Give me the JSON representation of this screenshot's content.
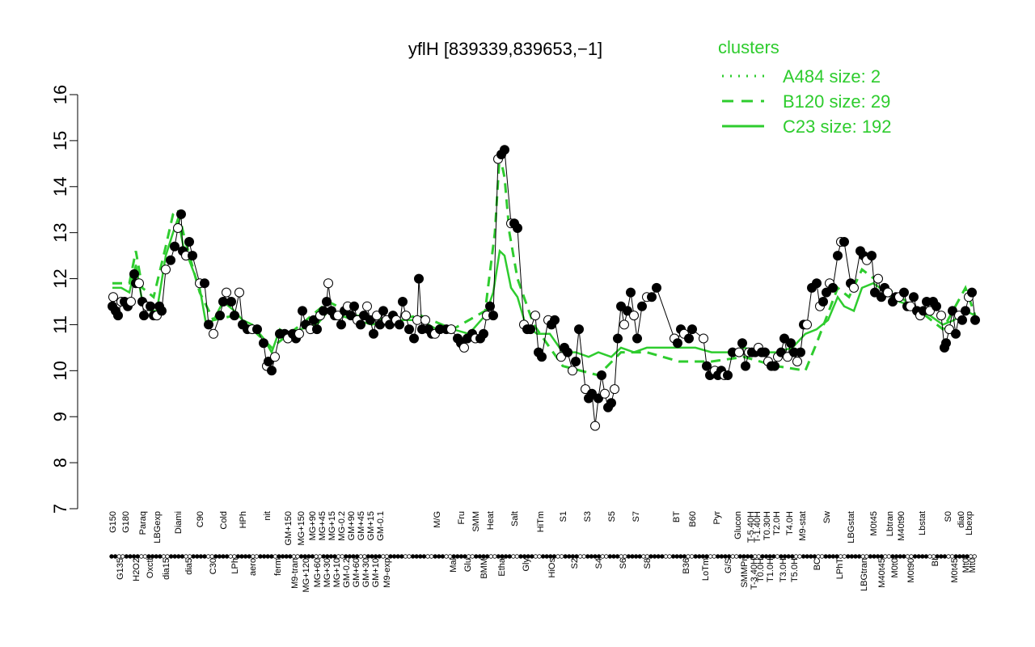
{
  "chart_data": {
    "type": "line",
    "title": "yflH [839339,839653,−1]",
    "ylim": [
      7,
      16
    ],
    "yticks": [
      7,
      8,
      9,
      10,
      11,
      12,
      13,
      14,
      15,
      16
    ],
    "xlabel": "",
    "ylabel": "",
    "grid": false,
    "legend": {
      "title": "clusters",
      "placement": "top-right",
      "entries": [
        {
          "label": "A484 size: 2",
          "style": "dotted"
        },
        {
          "label": "B120 size: 29",
          "style": "dashed"
        },
        {
          "label": "C23 size: 192",
          "style": "solid"
        }
      ]
    },
    "line_color": "#2ecc2e",
    "tick_labels": [
      "G150",
      "G135",
      "G180",
      "H2O2",
      "Paraq",
      "Oxctl",
      "LBGexp",
      "dia15",
      "Diami",
      "dia5",
      "C90",
      "C30",
      "Cold",
      "LPh",
      "HPh",
      "aero",
      "nit",
      "ferm",
      "GM+150",
      "M9-tran",
      "MG+150",
      "MG+120",
      "MG+90",
      "MG+60",
      "MG+45",
      "MG+30",
      "MG+15",
      "MG+10",
      "MG-0.2",
      "GM-0.2",
      "GM+90",
      "GM+60",
      "GM+45",
      "GM+30",
      "GM+15",
      "GM+10",
      "GM-0.1",
      "M9-exp",
      "M/G",
      "Mal",
      "Fru",
      "Glu",
      "SMM",
      "BMM",
      "Heat",
      "Etha",
      "Salt",
      "Gly",
      "HiTm",
      "HiOs",
      "S1",
      "S2",
      "S3",
      "S4",
      "S5",
      "S6",
      "S7",
      "S8",
      "BT",
      "B36",
      "B60",
      "LoTm",
      "Pyr",
      "G/S",
      "Glucon",
      "SMMPr",
      "T-5.40H",
      "T-3.40H",
      "T-1.40H",
      "T0.0H",
      "T0.30H",
      "T1.0H",
      "T2.0H",
      "T3.0H",
      "T4.0H",
      "T5.0H",
      "M9-stat",
      "BC",
      "Sw",
      "LPhT",
      "LBGstat",
      "LBGtran",
      "M0t45",
      "M40t45",
      "Lbtran",
      "M0t0",
      "M40t90",
      "M0t90",
      "Lbstat",
      "BI",
      "S0",
      "M0t45",
      "dia0",
      "Mt0",
      "Lbexp",
      "Mt0"
    ],
    "label_anchor_x": [
      139,
      148,
      155,
      168,
      176,
      185,
      194,
      205,
      220,
      233,
      247,
      263,
      276,
      290,
      300,
      312,
      330,
      343,
      356,
      364,
      372,
      378,
      386,
      392,
      398,
      404,
      410,
      416,
      422,
      428,
      434,
      440,
      446,
      452,
      458,
      464,
      470,
      478,
      540,
      560,
      570,
      578,
      588,
      598,
      606,
      620,
      636,
      650,
      668,
      682,
      696,
      710,
      726,
      740,
      756,
      770,
      786,
      800,
      836,
      848,
      856,
      872,
      886,
      900,
      912,
      920,
      928,
      932,
      936,
      940,
      948,
      952,
      960,
      968,
      976,
      982,
      992,
      1010,
      1022,
      1038,
      1052,
      1068,
      1080,
      1090,
      1100,
      1106,
      1114,
      1126,
      1140,
      1156,
      1172,
      1180,
      1188,
      1194,
      1198,
      1202
    ],
    "observations": [
      [
        139,
        11.4
      ],
      [
        140,
        11.6
      ],
      [
        143,
        11.3
      ],
      [
        146,
        11.2
      ],
      [
        150,
        11.5
      ],
      [
        154,
        11.5
      ],
      [
        158,
        11.4
      ],
      [
        162,
        11.5
      ],
      [
        166,
        12.1
      ],
      [
        168,
        11.9
      ],
      [
        172,
        11.9
      ],
      [
        176,
        11.5
      ],
      [
        178,
        11.2
      ],
      [
        182,
        11.4
      ],
      [
        186,
        11.4
      ],
      [
        190,
        11.2
      ],
      [
        194,
        11.2
      ],
      [
        197,
        11.4
      ],
      [
        200,
        11.3
      ],
      [
        205,
        12.2
      ],
      [
        211,
        12.4
      ],
      [
        216,
        12.7
      ],
      [
        220,
        13.1
      ],
      [
        224,
        13.4
      ],
      [
        226,
        12.6
      ],
      [
        230,
        12.5
      ],
      [
        234,
        12.8
      ],
      [
        238,
        12.5
      ],
      [
        247,
        11.9
      ],
      [
        253,
        11.9
      ],
      [
        258,
        11.0
      ],
      [
        264,
        10.8
      ],
      [
        272,
        11.2
      ],
      [
        276,
        11.5
      ],
      [
        280,
        11.7
      ],
      [
        286,
        11.5
      ],
      [
        290,
        11.2
      ],
      [
        296,
        11.7
      ],
      [
        300,
        11.0
      ],
      [
        306,
        10.9
      ],
      [
        312,
        10.9
      ],
      [
        318,
        10.9
      ],
      [
        326,
        10.6
      ],
      [
        330,
        10.1
      ],
      [
        332,
        10.2
      ],
      [
        336,
        10.0
      ],
      [
        340,
        10.3
      ],
      [
        346,
        10.8
      ],
      [
        352,
        10.8
      ],
      [
        356,
        10.7
      ],
      [
        362,
        10.8
      ],
      [
        366,
        10.7
      ],
      [
        370,
        10.8
      ],
      [
        374,
        11.3
      ],
      [
        378,
        11.0
      ],
      [
        384,
        10.9
      ],
      [
        388,
        11.1
      ],
      [
        392,
        10.9
      ],
      [
        396,
        11.2
      ],
      [
        400,
        11.3
      ],
      [
        404,
        11.5
      ],
      [
        406,
        11.9
      ],
      [
        410,
        11.3
      ],
      [
        414,
        11.2
      ],
      [
        418,
        11.2
      ],
      [
        422,
        11.0
      ],
      [
        426,
        11.3
      ],
      [
        430,
        11.4
      ],
      [
        434,
        11.2
      ],
      [
        438,
        11.4
      ],
      [
        442,
        11.1
      ],
      [
        446,
        11.0
      ],
      [
        450,
        11.2
      ],
      [
        454,
        11.4
      ],
      [
        458,
        11.1
      ],
      [
        462,
        10.8
      ],
      [
        466,
        11.2
      ],
      [
        470,
        11.0
      ],
      [
        474,
        11.3
      ],
      [
        478,
        11.1
      ],
      [
        482,
        11.0
      ],
      [
        486,
        11.2
      ],
      [
        490,
        11.1
      ],
      [
        494,
        11.0
      ],
      [
        498,
        11.5
      ],
      [
        502,
        11.2
      ],
      [
        506,
        10.9
      ],
      [
        512,
        10.7
      ],
      [
        516,
        11.1
      ],
      [
        518,
        12.0
      ],
      [
        522,
        10.9
      ],
      [
        526,
        11.1
      ],
      [
        530,
        10.9
      ],
      [
        534,
        10.8
      ],
      [
        538,
        10.8
      ],
      [
        544,
        10.9
      ],
      [
        552,
        10.9
      ],
      [
        558,
        10.9
      ],
      [
        566,
        10.7
      ],
      [
        570,
        10.6
      ],
      [
        574,
        10.5
      ],
      [
        578,
        10.7
      ],
      [
        584,
        10.8
      ],
      [
        588,
        10.7
      ],
      [
        594,
        10.7
      ],
      [
        598,
        10.8
      ],
      [
        602,
        11.2
      ],
      [
        606,
        11.4
      ],
      [
        610,
        11.2
      ],
      [
        616,
        14.6
      ],
      [
        620,
        14.7
      ],
      [
        624,
        14.8
      ],
      [
        632,
        13.2
      ],
      [
        636,
        13.2
      ],
      [
        640,
        13.1
      ],
      [
        648,
        11.0
      ],
      [
        652,
        10.9
      ],
      [
        656,
        10.9
      ],
      [
        662,
        11.2
      ],
      [
        666,
        10.4
      ],
      [
        670,
        10.3
      ],
      [
        678,
        11.1
      ],
      [
        682,
        11.0
      ],
      [
        686,
        11.1
      ],
      [
        694,
        10.3
      ],
      [
        698,
        10.5
      ],
      [
        702,
        10.4
      ],
      [
        708,
        10.0
      ],
      [
        712,
        10.2
      ],
      [
        716,
        10.9
      ],
      [
        724,
        9.6
      ],
      [
        728,
        9.4
      ],
      [
        732,
        9.5
      ],
      [
        736,
        8.8
      ],
      [
        740,
        9.4
      ],
      [
        744,
        9.9
      ],
      [
        748,
        9.5
      ],
      [
        752,
        9.2
      ],
      [
        756,
        9.3
      ],
      [
        760,
        9.6
      ],
      [
        764,
        10.7
      ],
      [
        768,
        11.4
      ],
      [
        772,
        11.0
      ],
      [
        776,
        11.3
      ],
      [
        780,
        11.7
      ],
      [
        784,
        11.2
      ],
      [
        788,
        10.7
      ],
      [
        794,
        11.4
      ],
      [
        800,
        11.6
      ],
      [
        806,
        11.6
      ],
      [
        812,
        11.8
      ],
      [
        834,
        10.7
      ],
      [
        838,
        10.6
      ],
      [
        842,
        10.9
      ],
      [
        846,
        10.8
      ],
      [
        852,
        10.7
      ],
      [
        856,
        10.9
      ],
      [
        870,
        10.7
      ],
      [
        874,
        10.1
      ],
      [
        878,
        9.9
      ],
      [
        884,
        10.0
      ],
      [
        888,
        9.9
      ],
      [
        892,
        10.0
      ],
      [
        896,
        9.9
      ],
      [
        900,
        9.9
      ],
      [
        906,
        10.4
      ],
      [
        914,
        10.4
      ],
      [
        918,
        10.6
      ],
      [
        922,
        10.1
      ],
      [
        926,
        10.4
      ],
      [
        930,
        10.4
      ],
      [
        934,
        10.4
      ],
      [
        938,
        10.5
      ],
      [
        942,
        10.4
      ],
      [
        946,
        10.4
      ],
      [
        950,
        10.2
      ],
      [
        954,
        10.1
      ],
      [
        958,
        10.1
      ],
      [
        962,
        10.3
      ],
      [
        966,
        10.4
      ],
      [
        970,
        10.7
      ],
      [
        974,
        10.3
      ],
      [
        978,
        10.6
      ],
      [
        982,
        10.4
      ],
      [
        986,
        10.2
      ],
      [
        990,
        10.4
      ],
      [
        994,
        11.0
      ],
      [
        998,
        11.0
      ],
      [
        1004,
        11.8
      ],
      [
        1010,
        11.9
      ],
      [
        1014,
        11.4
      ],
      [
        1018,
        11.5
      ],
      [
        1022,
        11.7
      ],
      [
        1026,
        11.9
      ],
      [
        1030,
        11.8
      ],
      [
        1036,
        12.5
      ],
      [
        1040,
        12.8
      ],
      [
        1044,
        12.8
      ],
      [
        1052,
        11.9
      ],
      [
        1056,
        11.8
      ],
      [
        1064,
        12.6
      ],
      [
        1068,
        12.5
      ],
      [
        1072,
        12.4
      ],
      [
        1078,
        12.5
      ],
      [
        1082,
        11.7
      ],
      [
        1086,
        12.0
      ],
      [
        1090,
        11.6
      ],
      [
        1094,
        11.8
      ],
      [
        1098,
        11.7
      ],
      [
        1104,
        11.5
      ],
      [
        1108,
        11.6
      ],
      [
        1112,
        11.6
      ],
      [
        1118,
        11.7
      ],
      [
        1122,
        11.4
      ],
      [
        1126,
        11.4
      ],
      [
        1130,
        11.6
      ],
      [
        1134,
        11.3
      ],
      [
        1138,
        11.2
      ],
      [
        1142,
        11.3
      ],
      [
        1146,
        11.5
      ],
      [
        1150,
        11.3
      ],
      [
        1154,
        11.5
      ],
      [
        1158,
        11.4
      ],
      [
        1164,
        11.2
      ],
      [
        1168,
        10.5
      ],
      [
        1170,
        10.6
      ],
      [
        1174,
        10.9
      ],
      [
        1178,
        11.3
      ],
      [
        1182,
        10.8
      ],
      [
        1186,
        11.2
      ],
      [
        1190,
        11.1
      ],
      [
        1194,
        11.3
      ],
      [
        1198,
        11.6
      ],
      [
        1202,
        11.7
      ],
      [
        1206,
        11.1
      ]
    ],
    "cluster_mean": [
      [
        139,
        11.8
      ],
      [
        150,
        11.8
      ],
      [
        160,
        11.7
      ],
      [
        168,
        12.3
      ],
      [
        176,
        11.5
      ],
      [
        186,
        11.3
      ],
      [
        194,
        11.3
      ],
      [
        205,
        12.5
      ],
      [
        214,
        13.0
      ],
      [
        220,
        13.3
      ],
      [
        228,
        12.6
      ],
      [
        234,
        12.4
      ],
      [
        247,
        11.8
      ],
      [
        255,
        11.0
      ],
      [
        264,
        11.1
      ],
      [
        276,
        11.5
      ],
      [
        290,
        11.3
      ],
      [
        300,
        11.1
      ],
      [
        312,
        11.0
      ],
      [
        326,
        10.7
      ],
      [
        336,
        10.4
      ],
      [
        346,
        10.9
      ],
      [
        356,
        10.8
      ],
      [
        372,
        10.9
      ],
      [
        392,
        11.0
      ],
      [
        406,
        11.3
      ],
      [
        420,
        11.2
      ],
      [
        440,
        11.1
      ],
      [
        460,
        11.0
      ],
      [
        480,
        11.1
      ],
      [
        500,
        11.1
      ],
      [
        520,
        11.1
      ],
      [
        540,
        10.9
      ],
      [
        560,
        10.9
      ],
      [
        580,
        10.8
      ],
      [
        600,
        11.2
      ],
      [
        610,
        11.7
      ],
      [
        618,
        12.6
      ],
      [
        624,
        12.5
      ],
      [
        632,
        11.8
      ],
      [
        640,
        11.6
      ],
      [
        650,
        11.0
      ],
      [
        664,
        10.8
      ],
      [
        680,
        10.8
      ],
      [
        696,
        10.4
      ],
      [
        712,
        10.4
      ],
      [
        728,
        10.3
      ],
      [
        740,
        10.4
      ],
      [
        756,
        10.3
      ],
      [
        768,
        10.5
      ],
      [
        784,
        10.4
      ],
      [
        800,
        10.5
      ],
      [
        820,
        10.5
      ],
      [
        840,
        10.5
      ],
      [
        860,
        10.5
      ],
      [
        880,
        10.4
      ],
      [
        900,
        10.4
      ],
      [
        920,
        10.5
      ],
      [
        940,
        10.4
      ],
      [
        960,
        10.4
      ],
      [
        980,
        10.5
      ],
      [
        996,
        10.8
      ],
      [
        1010,
        10.9
      ],
      [
        1024,
        11.1
      ],
      [
        1036,
        11.6
      ],
      [
        1044,
        11.4
      ],
      [
        1056,
        11.3
      ],
      [
        1066,
        11.8
      ],
      [
        1080,
        11.9
      ],
      [
        1096,
        11.7
      ],
      [
        1112,
        11.5
      ],
      [
        1130,
        11.4
      ],
      [
        1150,
        11.2
      ],
      [
        1166,
        11.0
      ],
      [
        1180,
        11.1
      ],
      [
        1194,
        11.3
      ],
      [
        1206,
        11.2
      ]
    ],
    "cluster_b120_mean": [
      [
        139,
        11.9
      ],
      [
        150,
        11.9
      ],
      [
        160,
        11.9
      ],
      [
        168,
        12.6
      ],
      [
        176,
        11.8
      ],
      [
        190,
        11.6
      ],
      [
        205,
        12.7
      ],
      [
        214,
        13.4
      ],
      [
        220,
        13.5
      ],
      [
        228,
        12.9
      ],
      [
        247,
        11.7
      ],
      [
        264,
        11.1
      ],
      [
        290,
        11.2
      ],
      [
        312,
        10.9
      ],
      [
        336,
        10.5
      ],
      [
        372,
        11.0
      ],
      [
        406,
        11.5
      ],
      [
        440,
        11.2
      ],
      [
        480,
        11.1
      ],
      [
        520,
        11.2
      ],
      [
        560,
        10.9
      ],
      [
        600,
        11.3
      ],
      [
        612,
        13.0
      ],
      [
        618,
        14.7
      ],
      [
        624,
        14.2
      ],
      [
        630,
        13.0
      ],
      [
        640,
        12.0
      ],
      [
        660,
        11.0
      ],
      [
        696,
        10.1
      ],
      [
        740,
        9.9
      ],
      [
        768,
        10.4
      ],
      [
        800,
        10.4
      ],
      [
        840,
        10.2
      ],
      [
        880,
        10.2
      ],
      [
        920,
        10.3
      ],
      [
        960,
        10.1
      ],
      [
        996,
        10.0
      ],
      [
        1010,
        10.6
      ],
      [
        1036,
        11.8
      ],
      [
        1050,
        11.6
      ],
      [
        1066,
        12.2
      ],
      [
        1096,
        11.8
      ],
      [
        1130,
        11.4
      ],
      [
        1166,
        10.9
      ],
      [
        1194,
        11.8
      ],
      [
        1206,
        11.2
      ]
    ]
  }
}
